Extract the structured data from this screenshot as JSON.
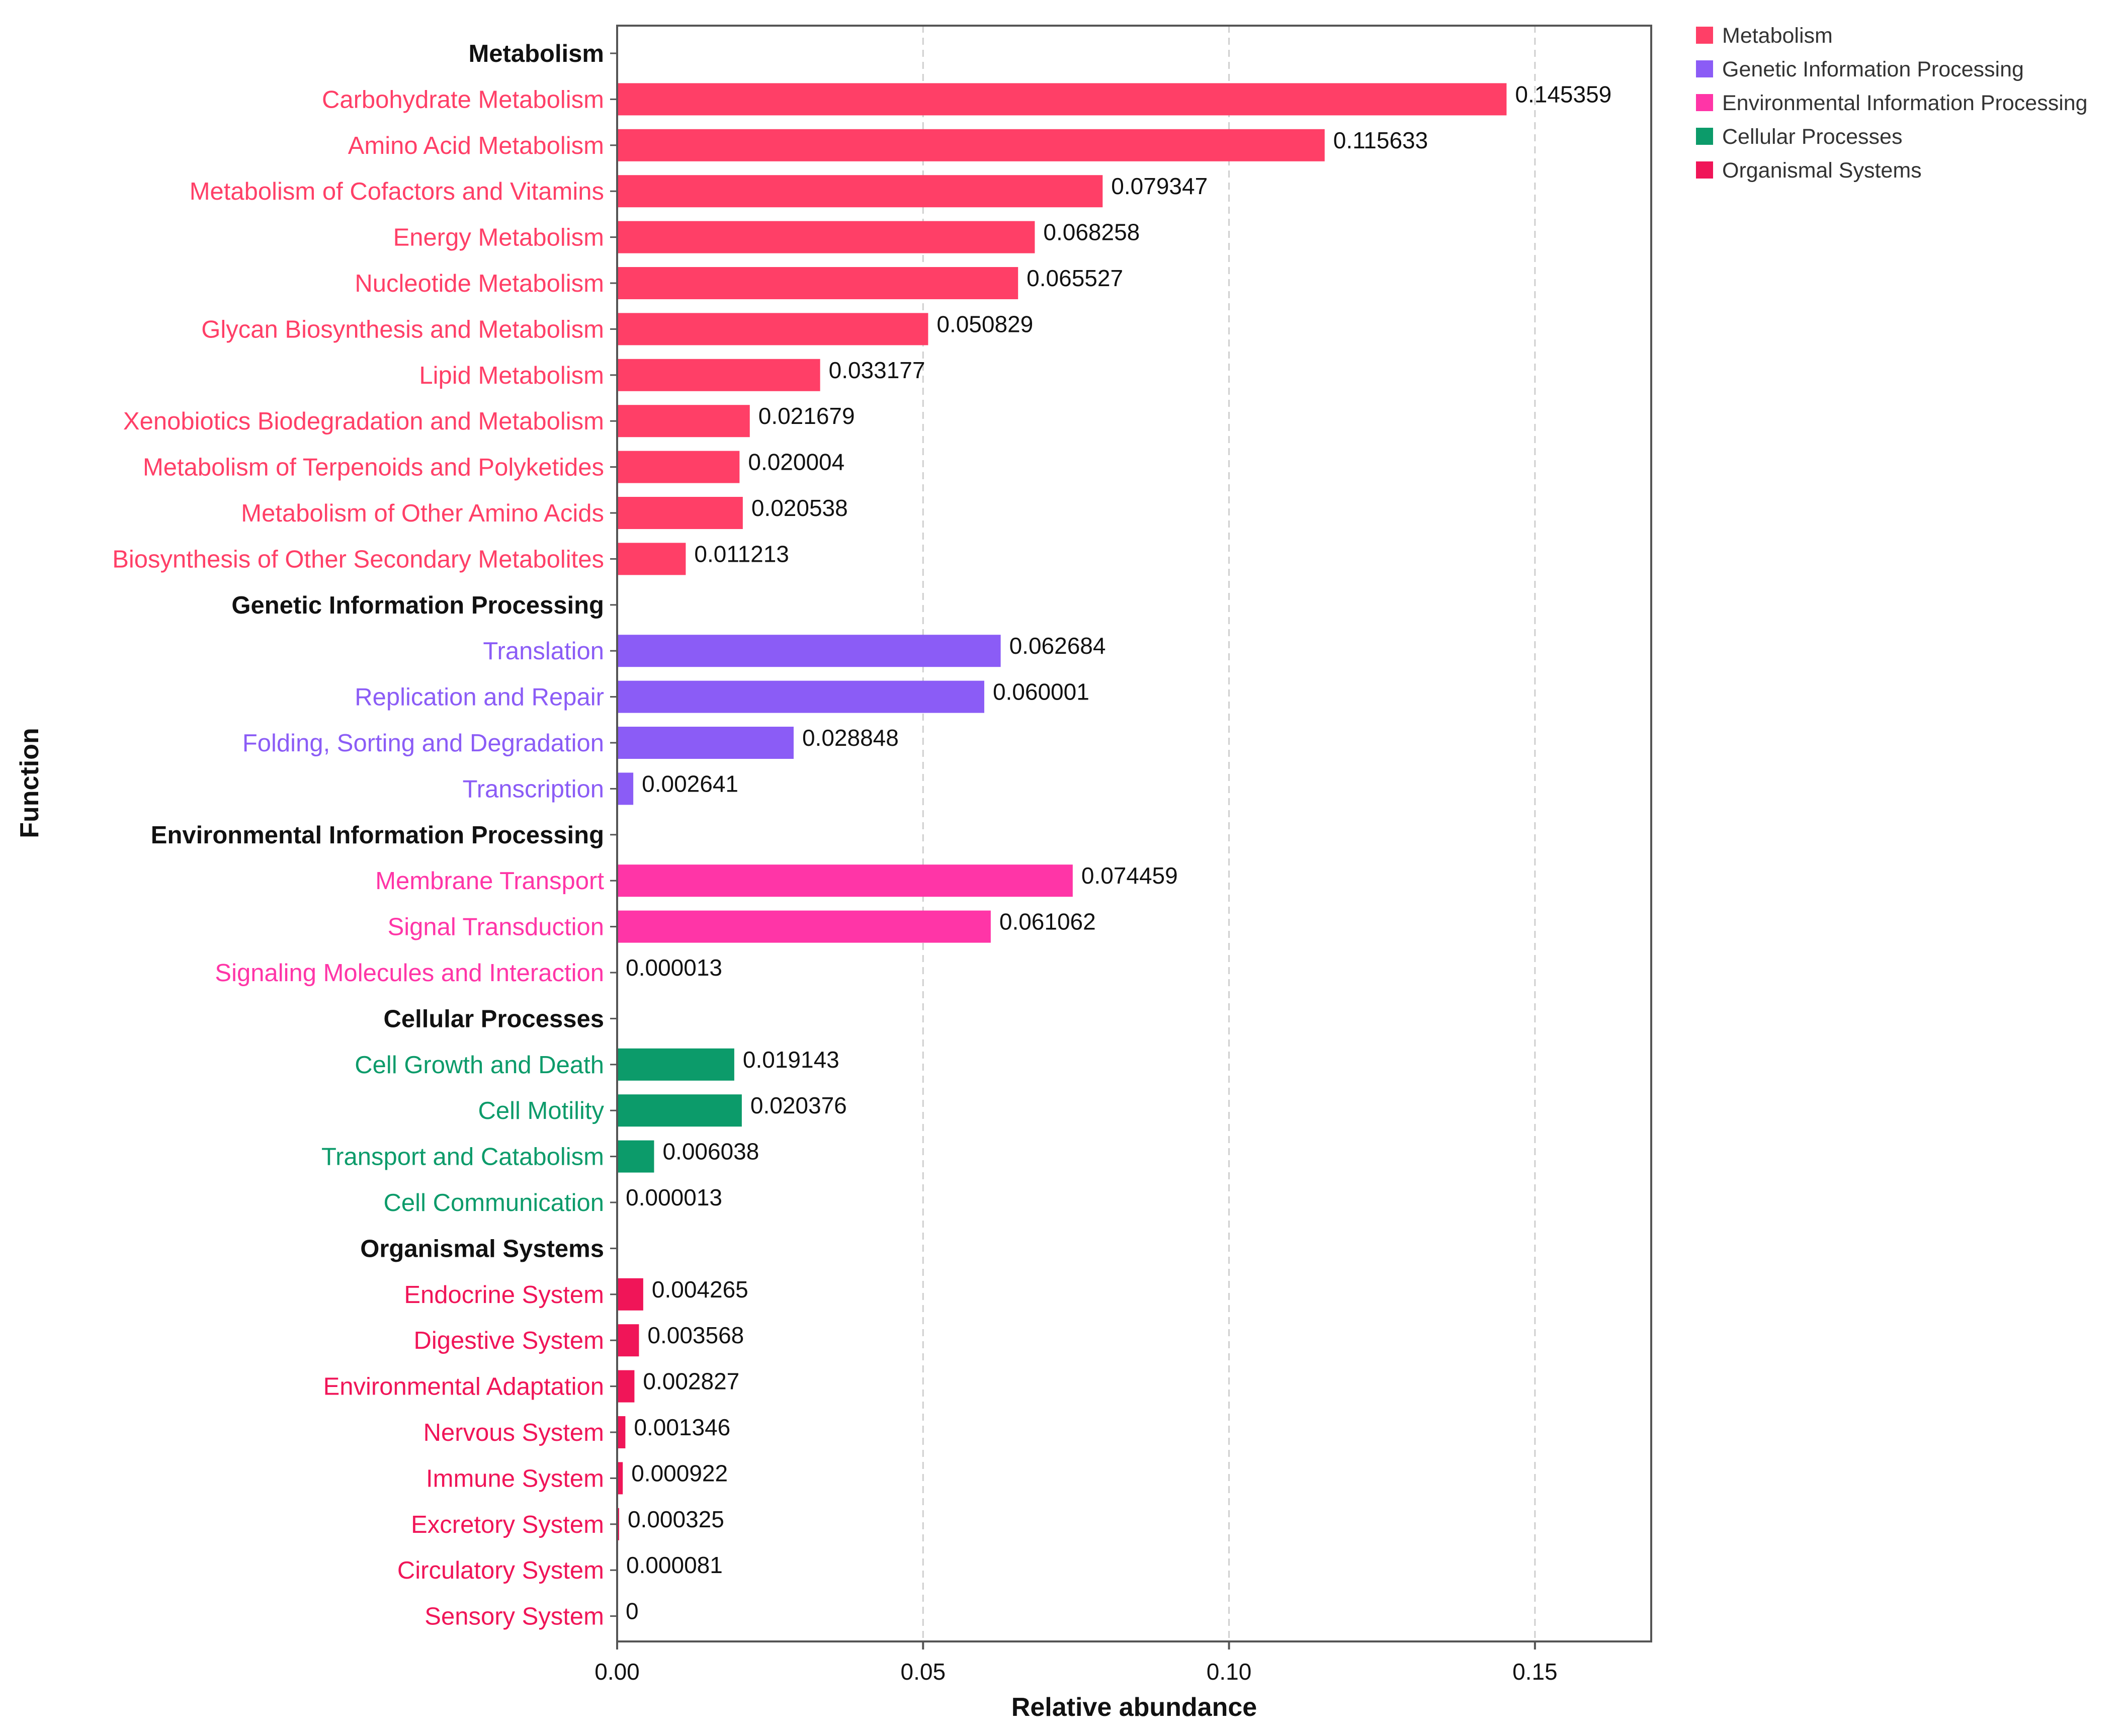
{
  "chart_data": {
    "type": "bar",
    "orientation": "horizontal",
    "xlabel": "Relative abundance",
    "ylabel": "Function",
    "xlim": [
      0,
      0.169
    ],
    "xticks": [
      {
        "value": 0,
        "label": "0.00"
      },
      {
        "value": 0.05,
        "label": "0.05"
      },
      {
        "value": 0.1,
        "label": "0.10"
      },
      {
        "value": 0.15,
        "label": "0.15"
      }
    ],
    "grid": "vertical dashed",
    "legend_position": "top-right",
    "groups": [
      {
        "name": "Metabolism",
        "color": "#FF3F67",
        "items": [
          {
            "label": "Carbohydrate Metabolism",
            "value": 0.145359,
            "value_label": "0.145359"
          },
          {
            "label": "Amino Acid Metabolism",
            "value": 0.115633,
            "value_label": "0.115633"
          },
          {
            "label": "Metabolism of Cofactors and Vitamins",
            "value": 0.079347,
            "value_label": "0.079347"
          },
          {
            "label": "Energy Metabolism",
            "value": 0.068258,
            "value_label": "0.068258"
          },
          {
            "label": "Nucleotide Metabolism",
            "value": 0.065527,
            "value_label": "0.065527"
          },
          {
            "label": "Glycan Biosynthesis and Metabolism",
            "value": 0.050829,
            "value_label": "0.050829"
          },
          {
            "label": "Lipid Metabolism",
            "value": 0.033177,
            "value_label": "0.033177"
          },
          {
            "label": "Xenobiotics Biodegradation and Metabolism",
            "value": 0.021679,
            "value_label": "0.021679"
          },
          {
            "label": "Metabolism of Terpenoids and Polyketides",
            "value": 0.020004,
            "value_label": "0.020004"
          },
          {
            "label": "Metabolism of Other Amino Acids",
            "value": 0.020538,
            "value_label": "0.020538"
          },
          {
            "label": "Biosynthesis of Other Secondary Metabolites",
            "value": 0.011213,
            "value_label": "0.011213"
          }
        ]
      },
      {
        "name": "Genetic Information Processing",
        "color": "#8B5CF6",
        "items": [
          {
            "label": "Translation",
            "value": 0.062684,
            "value_label": "0.062684"
          },
          {
            "label": "Replication and Repair",
            "value": 0.060001,
            "value_label": "0.060001"
          },
          {
            "label": "Folding, Sorting and Degradation",
            "value": 0.028848,
            "value_label": "0.028848"
          },
          {
            "label": "Transcription",
            "value": 0.002641,
            "value_label": "0.002641"
          }
        ]
      },
      {
        "name": "Environmental Information Processing",
        "color": "#FF35A7",
        "items": [
          {
            "label": "Membrane Transport",
            "value": 0.074459,
            "value_label": "0.074459"
          },
          {
            "label": "Signal Transduction",
            "value": 0.061062,
            "value_label": "0.061062"
          },
          {
            "label": "Signaling Molecules and Interaction",
            "value": 1.3e-05,
            "value_label": "0.000013"
          }
        ]
      },
      {
        "name": "Cellular Processes",
        "color": "#0C9B6A",
        "items": [
          {
            "label": "Cell Growth and Death",
            "value": 0.019143,
            "value_label": "0.019143"
          },
          {
            "label": "Cell Motility",
            "value": 0.020376,
            "value_label": "0.020376"
          },
          {
            "label": "Transport and Catabolism",
            "value": 0.006038,
            "value_label": "0.006038"
          },
          {
            "label": "Cell Communication",
            "value": 1.3e-05,
            "value_label": "0.000013"
          }
        ]
      },
      {
        "name": "Organismal Systems",
        "color": "#F01558",
        "items": [
          {
            "label": "Endocrine System",
            "value": 0.004265,
            "value_label": "0.004265"
          },
          {
            "label": "Digestive System",
            "value": 0.003568,
            "value_label": "0.003568"
          },
          {
            "label": "Environmental Adaptation",
            "value": 0.002827,
            "value_label": "0.002827"
          },
          {
            "label": "Nervous System",
            "value": 0.001346,
            "value_label": "0.001346"
          },
          {
            "label": "Immune System",
            "value": 0.000922,
            "value_label": "0.000922"
          },
          {
            "label": "Excretory System",
            "value": 0.000325,
            "value_label": "0.000325"
          },
          {
            "label": "Circulatory System",
            "value": 8.1e-05,
            "value_label": "0.000081"
          },
          {
            "label": "Sensory System",
            "value": 0,
            "value_label": "0"
          }
        ]
      }
    ]
  }
}
